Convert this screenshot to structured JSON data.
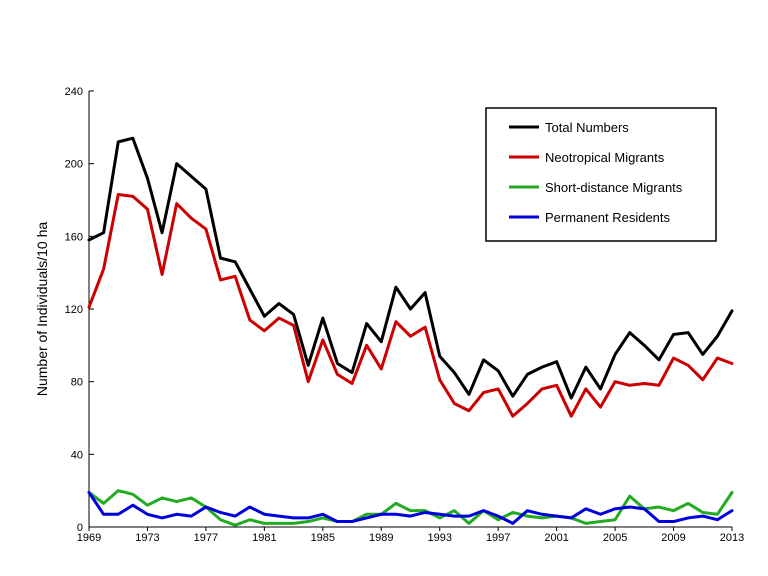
{
  "chart_data": {
    "type": "line",
    "title": "",
    "xlabel": "",
    "ylabel": "Number of Individuals/10 ha",
    "xlim": [
      1969,
      2013
    ],
    "ylim": [
      0,
      240
    ],
    "x_ticks": [
      "1969",
      "1973",
      "1977",
      "1981",
      "1985",
      "1989",
      "1993",
      "1997",
      "2001",
      "2005",
      "2009",
      "2013"
    ],
    "y_ticks": [
      "0",
      "40",
      "80",
      "120",
      "160",
      "200",
      "240"
    ],
    "grid": false,
    "legend_position": "top-right",
    "x": [
      1969,
      1970,
      1971,
      1972,
      1973,
      1974,
      1975,
      1976,
      1977,
      1978,
      1979,
      1980,
      1981,
      1982,
      1983,
      1984,
      1985,
      1986,
      1987,
      1988,
      1989,
      1990,
      1991,
      1992,
      1993,
      1994,
      1995,
      1996,
      1997,
      1998,
      1999,
      2000,
      2001,
      2002,
      2003,
      2004,
      2005,
      2006,
      2007,
      2008,
      2009,
      2010,
      2011,
      2012,
      2013
    ],
    "series": [
      {
        "name": "Total Numbers",
        "color": "#000000",
        "values": [
          158,
          162,
          212,
          214,
          192,
          162,
          200,
          193,
          186,
          148,
          146,
          131,
          116,
          123,
          117,
          89,
          115,
          90,
          85,
          112,
          102,
          132,
          120,
          129,
          94,
          85,
          73,
          92,
          86,
          72,
          84,
          88,
          91,
          71,
          88,
          76,
          95,
          107,
          100,
          92,
          106,
          107,
          95,
          105,
          119
        ]
      },
      {
        "name": "Neotropical Migrants",
        "color": "#cc0000",
        "values": [
          121,
          142,
          183,
          182,
          175,
          139,
          178,
          170,
          164,
          136,
          138,
          114,
          108,
          115,
          111,
          80,
          103,
          84,
          79,
          100,
          87,
          113,
          105,
          110,
          81,
          68,
          64,
          74,
          76,
          61,
          68,
          76,
          78,
          61,
          76,
          66,
          80,
          78,
          79,
          78,
          93,
          89,
          81,
          93,
          90
        ]
      },
      {
        "name": "Short-distance Migrants",
        "color": "#22aa22",
        "values": [
          19,
          13,
          20,
          18,
          12,
          16,
          14,
          16,
          11,
          4,
          1,
          4,
          2,
          2,
          2,
          3,
          5,
          3,
          3,
          7,
          7,
          13,
          9,
          9,
          5,
          9,
          2,
          9,
          4,
          8,
          6,
          5,
          6,
          5,
          2,
          3,
          4,
          17,
          10,
          11,
          9,
          13,
          8,
          7,
          19
        ]
      },
      {
        "name": "Permanent Residents",
        "color": "#0000dd",
        "values": [
          19,
          7,
          7,
          12,
          7,
          5,
          7,
          6,
          11,
          8,
          6,
          11,
          7,
          6,
          5,
          5,
          7,
          3,
          3,
          5,
          7,
          7,
          6,
          8,
          7,
          6,
          6,
          9,
          6,
          2,
          9,
          7,
          6,
          5,
          10,
          7,
          10,
          11,
          10,
          3,
          3,
          5,
          6,
          4,
          9
        ]
      }
    ]
  }
}
